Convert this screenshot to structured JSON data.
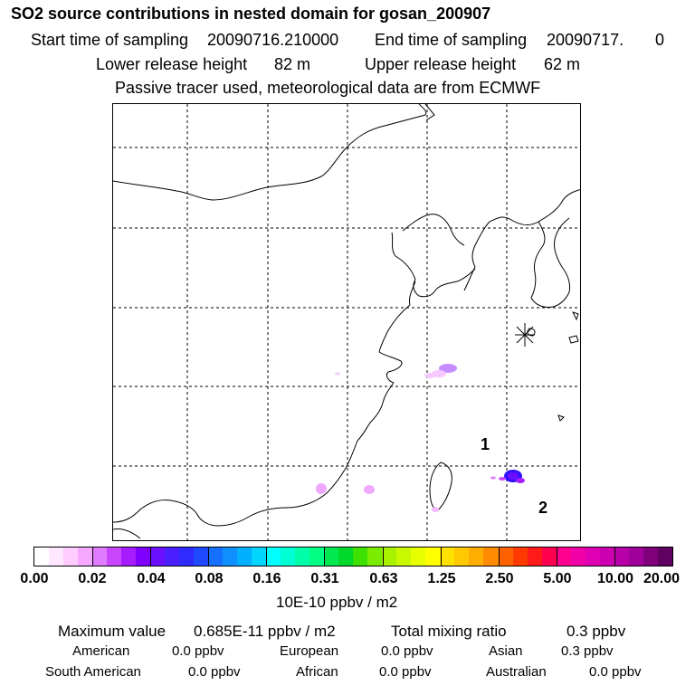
{
  "title": "SO2 source contributions in nested domain for gosan_200907",
  "start_label": "Start time of sampling",
  "start_value": "20090716.210000",
  "end_label": "End time of sampling",
  "end_value": "20090717.",
  "end_suffix": "0",
  "lower_label": "Lower release height",
  "lower_value": "82 m",
  "upper_label": "Upper release height",
  "upper_value": "62 m",
  "note": "Passive tracer used, meteorological data are from ECMWF",
  "map": {
    "region_labels": [
      "1",
      "2"
    ],
    "receptor_icon": "asterisk-receptor-icon"
  },
  "colorbar": {
    "ticks": [
      "0.00",
      "0.02",
      "0.04",
      "0.08",
      "0.16",
      "0.31",
      "0.63",
      "1.25",
      "2.50",
      "5.00",
      "10.00",
      "20.00"
    ],
    "colors": [
      "#ffffff",
      "#ffe8ff",
      "#ffccff",
      "#f4a8ff",
      "#e07cff",
      "#c946ff",
      "#a61cff",
      "#7f00ff",
      "#6a10ff",
      "#4a1eff",
      "#2f2bff",
      "#1e49ff",
      "#1670ff",
      "#0e90ff",
      "#00b0ff",
      "#00d4ff",
      "#00ffff",
      "#00ffd2",
      "#00ffa8",
      "#00ff82",
      "#00e850",
      "#00d82c",
      "#3ee000",
      "#7aec00",
      "#a8f200",
      "#c9f800",
      "#e8ff00",
      "#ffff00",
      "#ffe100",
      "#ffc800",
      "#ffae00",
      "#ff8c00",
      "#ff6200",
      "#ff3a00",
      "#ff1a1a",
      "#ff0050",
      "#ff0090",
      "#f000a8",
      "#e000b4",
      "#cc00b0",
      "#b800a8",
      "#a0009a",
      "#80007c",
      "#600060"
    ],
    "unit": "10E-10 ppbv / m2"
  },
  "max_label": "Maximum value",
  "max_value": "0.685E-11 ppbv / m2",
  "total_label": "Total mixing ratio",
  "total_value": "0.3 ppbv",
  "contributions": {
    "american_label": "American",
    "american_value": "0.0 ppbv",
    "european_label": "European",
    "european_value": "0.0 ppbv",
    "asian_label": "Asian",
    "asian_value": "0.3 ppbv",
    "south_american_label": "South American",
    "south_american_value": "0.0 ppbv",
    "african_label": "African",
    "african_value": "0.0 ppbv",
    "australian_label": "Australian",
    "australian_value": "0.0 ppbv"
  }
}
